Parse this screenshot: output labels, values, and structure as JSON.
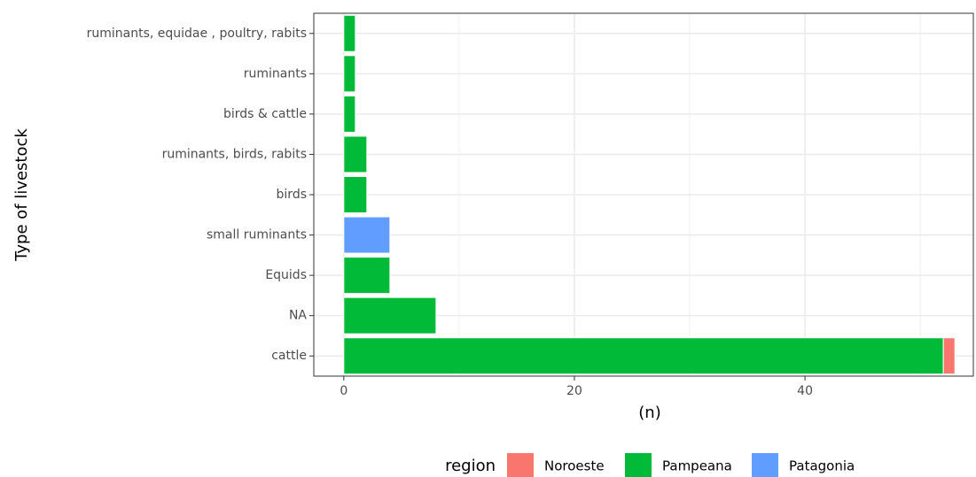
{
  "chart_data": {
    "type": "bar",
    "orientation": "horizontal",
    "stacked": true,
    "categories": [
      "cattle",
      "NA",
      "Equids",
      "small ruminants",
      "birds",
      "ruminants, birds, rabits",
      "birds & cattle",
      "ruminants",
      "ruminants, equidae , poultry, rabits"
    ],
    "series": [
      {
        "name": "Noroeste",
        "color": "#F8766D",
        "values": [
          1,
          0,
          0,
          0,
          0,
          0,
          0,
          0,
          0
        ]
      },
      {
        "name": "Pampeana",
        "color": "#00BA38",
        "values": [
          52,
          8,
          4,
          0,
          2,
          2,
          1,
          1,
          1
        ]
      },
      {
        "name": "Patagonia",
        "color": "#619CFF",
        "values": [
          0,
          0,
          0,
          4,
          0,
          0,
          0,
          0,
          0
        ]
      }
    ],
    "xlabel": "(n)",
    "ylabel": "Type of livestock",
    "legend_title": "region",
    "legend": "bottom",
    "xlim": [
      -2.6,
      54.6
    ],
    "xticks": [
      0,
      20,
      40
    ],
    "minor_xticks": [
      10,
      30,
      50
    ],
    "grid": true
  }
}
